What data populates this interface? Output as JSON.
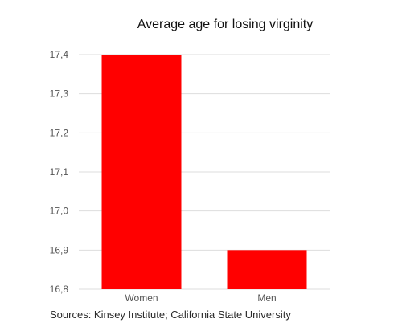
{
  "chart_data": {
    "type": "bar",
    "title": "Average age for losing virginity",
    "categories": [
      "Women",
      "Men"
    ],
    "values": [
      17.4,
      16.9
    ],
    "ylim": [
      16.8,
      17.4
    ],
    "yticks": [
      "16,8",
      "16,9",
      "17,0",
      "17,1",
      "17,2",
      "17,3",
      "17,4"
    ],
    "grid": true,
    "xlabel": "",
    "ylabel": "",
    "bar_color": "#ff0000"
  },
  "source": "Sources: Kinsey Institute; California State University"
}
